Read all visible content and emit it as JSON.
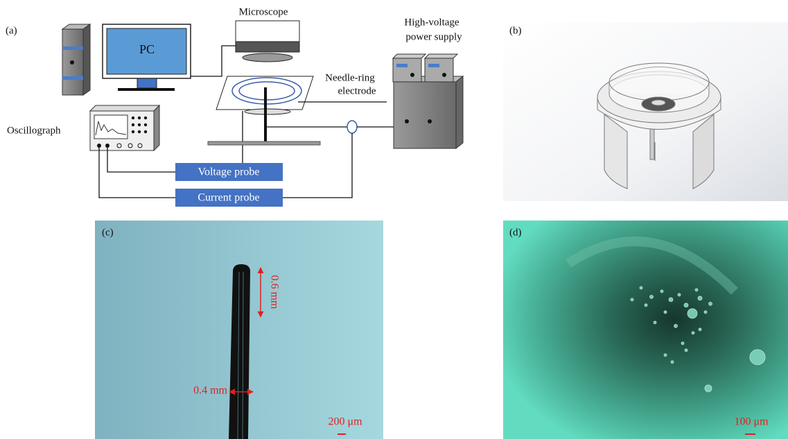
{
  "panels": {
    "a": {
      "label": "(a)",
      "pc": "PC",
      "microscope": "Microscope",
      "power_supply": [
        "High-voltage",
        "power supply"
      ],
      "electrode": [
        "Needle-ring",
        "electrode"
      ],
      "oscillograph": "Oscillograph",
      "voltage_probe": "Voltage probe",
      "current_probe": "Current probe"
    },
    "b": {
      "label": "(b)"
    },
    "c": {
      "label": "(c)",
      "needle_length": "0.6 mm",
      "needle_width": "0.4 mm",
      "scale_bar": "200 μm"
    },
    "d": {
      "label": "(d)",
      "scale_bar": "100 μm"
    }
  }
}
